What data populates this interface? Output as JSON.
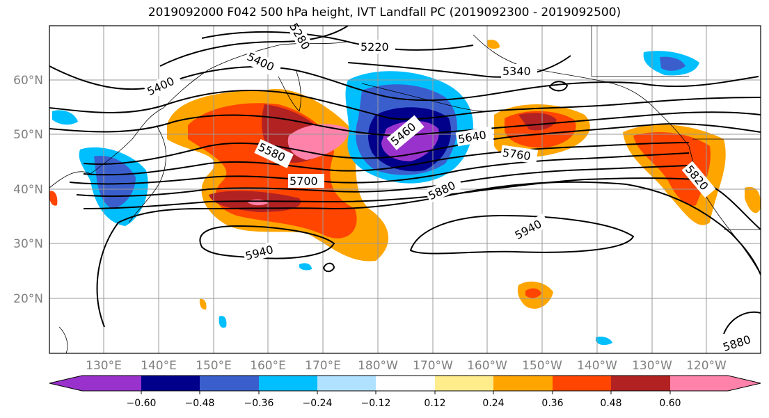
{
  "title": "2019092000 F042 500 hPa height, IVT Landfall PC (2019092300 - 2019092500)",
  "map": {
    "lat_labels": [
      "60°N",
      "50°N",
      "40°N",
      "30°N",
      "20°N"
    ],
    "lon_labels": [
      "130°E",
      "140°E",
      "150°E",
      "160°E",
      "170°E",
      "180°W",
      "170°W",
      "160°W",
      "150°W",
      "140°W",
      "130°W",
      "120°W"
    ],
    "contour_labels": [
      "5220",
      "5340",
      "5400",
      "5400",
      "5460",
      "5580",
      "5640",
      "5700",
      "5760",
      "5820",
      "5880",
      "5940",
      "5940",
      "5880",
      "5280"
    ]
  },
  "colorbar": {
    "colors": [
      "#9932CC",
      "#00008B",
      "#3A5FCD",
      "#00BFFF",
      "#B0E2FF",
      "#FFFFFF",
      "#FFEC8B",
      "#FFA500",
      "#FF4500",
      "#B22222",
      "#FF82AB"
    ],
    "tick_labels": [
      "−0.60",
      "−0.48",
      "−0.36",
      "−0.24",
      "−0.12",
      "0.12",
      "0.24",
      "0.36",
      "0.48",
      "0.60"
    ]
  }
}
